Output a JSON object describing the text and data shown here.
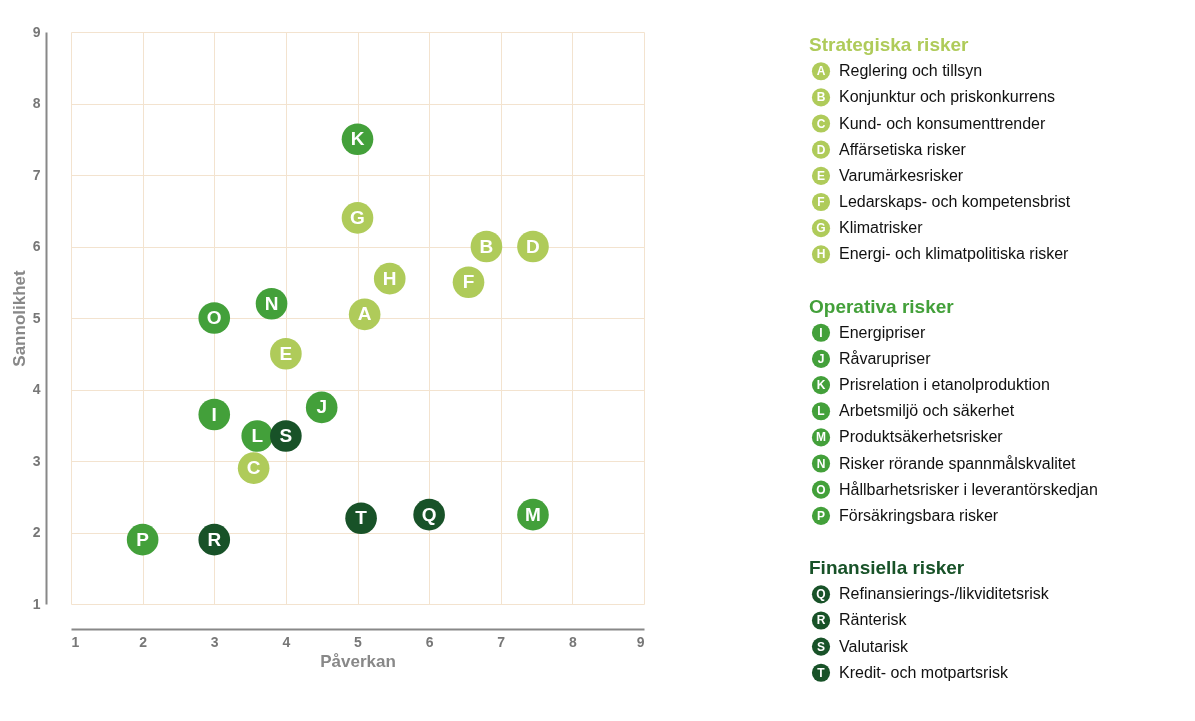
{
  "chart_data": {
    "type": "scatter",
    "xlabel": "Påverkan",
    "ylabel": "Sannolikhet",
    "xlim": [
      1,
      9
    ],
    "ylim": [
      1,
      9
    ],
    "xticks": [
      1,
      2,
      3,
      4,
      5,
      6,
      7,
      8,
      9
    ],
    "yticks": [
      1,
      2,
      3,
      4,
      5,
      6,
      7,
      8,
      9
    ],
    "grid": true,
    "marker": "circle",
    "legend": "right",
    "series": [
      {
        "name": "Strategiska risker",
        "color": "#afcb5a",
        "x": [
          5.1,
          6.8,
          3.55,
          7.45,
          4.0,
          6.55,
          5.0,
          5.45
        ],
        "values": [
          5.05,
          6.0,
          2.9,
          6.0,
          4.5,
          5.5,
          6.4,
          5.55
        ],
        "value_labels": [
          "A",
          "B",
          "C",
          "D",
          "E",
          "F",
          "G",
          "H"
        ]
      },
      {
        "name": "Operativa risker",
        "color": "#43a03a",
        "x": [
          3.0,
          4.5,
          5.0,
          3.6,
          7.45,
          3.8,
          3.0,
          2.0
        ],
        "values": [
          3.65,
          3.75,
          7.5,
          3.35,
          2.25,
          5.2,
          5.0,
          1.9
        ],
        "value_labels": [
          "I",
          "J",
          "K",
          "L",
          "M",
          "N",
          "O",
          "P"
        ]
      },
      {
        "name": "Finansiella risker",
        "color": "#185228",
        "x": [
          6.0,
          3.0,
          4.0,
          5.05
        ],
        "values": [
          2.25,
          1.9,
          3.35,
          2.2
        ],
        "value_labels": [
          "Q",
          "R",
          "S",
          "T"
        ]
      }
    ],
    "annotations": [
      "Reglering och tillsyn",
      "Konjunktur och priskonkurrens",
      "Kund- och konsumenttrender",
      "Affärsetiska risker",
      "Varumärkesrisker",
      "Ledarskaps- och kompetensbrist",
      "Klimatrisker",
      "Energi- och klimatpolitiska risker",
      "Energipriser",
      "Råvarupriser",
      "Prisrelation i etanolproduktion",
      "Arbetsmiljö och säkerhet",
      "Produktsäkerhetsrisker",
      "Risker rörande spannmålskvalitet",
      "Hållbarhetsrisker i leverantörskedjan",
      "Försäkringsbara risker",
      "Refinansierings-/likviditetsrisk",
      "Ränterisk",
      "Valutarisk",
      "Kredit- och motpartsrisk"
    ]
  }
}
